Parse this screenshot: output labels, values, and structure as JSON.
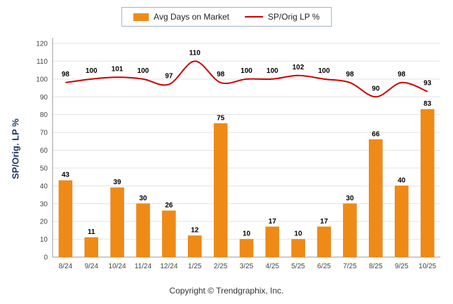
{
  "legend": {
    "bar_label": "Avg Days on Market",
    "line_label": "SP/Orig LP %"
  },
  "ylabel": "SP/Orig. LP %",
  "footer": "Copyright © Trendgraphix, Inc.",
  "colors": {
    "bar": "#f08a17",
    "bar_border": "#d97a0c",
    "line": "#cc0000",
    "grid": "#e3e3e3",
    "axis": "#999999",
    "tick_text": "#444444",
    "value_text": "#000000"
  },
  "chart_data": {
    "type": "bar+line",
    "title": "",
    "xlabel": "",
    "ylabel": "SP/Orig. LP %",
    "ylim": [
      0,
      120
    ],
    "ytick_step": 10,
    "yticks": [
      0,
      10,
      20,
      30,
      40,
      50,
      60,
      70,
      80,
      90,
      100,
      110,
      120
    ],
    "grid": true,
    "legend_position": "top",
    "categories": [
      "8/24",
      "9/24",
      "10/24",
      "11/24",
      "12/24",
      "1/25",
      "2/25",
      "3/25",
      "4/25",
      "5/25",
      "6/25",
      "7/25",
      "8/25",
      "9/25",
      "10/25"
    ],
    "series": [
      {
        "name": "Avg Days on Market",
        "type": "bar",
        "values": [
          43,
          11,
          39,
          30,
          26,
          12,
          75,
          10,
          17,
          10,
          17,
          30,
          66,
          40,
          83
        ]
      },
      {
        "name": "SP/Orig LP %",
        "type": "line",
        "values": [
          98,
          100,
          101,
          100,
          97,
          110,
          98,
          100,
          100,
          102,
          100,
          98,
          90,
          98,
          93
        ]
      }
    ]
  }
}
